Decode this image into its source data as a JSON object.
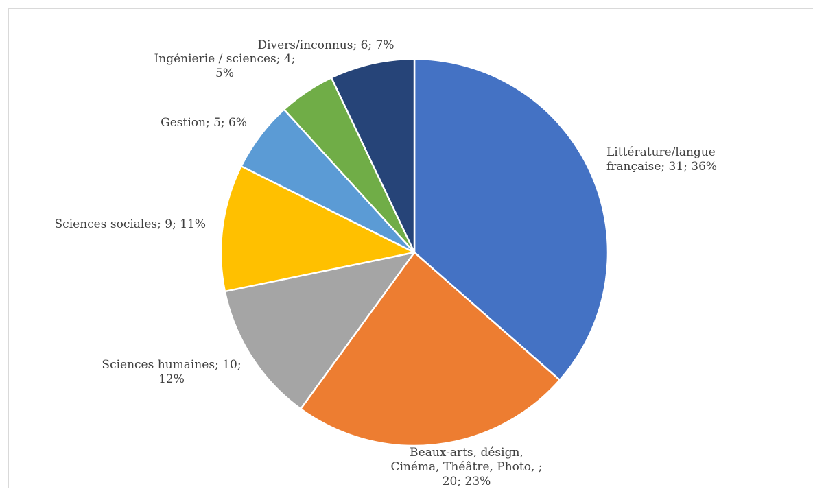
{
  "chart_data": {
    "type": "pie",
    "title": "",
    "start_angle_deg": 0,
    "direction": "clockwise",
    "slices": [
      {
        "label": "Littérature/langue française",
        "value": 31,
        "percent": "36%",
        "color": "#4472C4",
        "label_lines": [
          "Littérature/langue",
          "française; 31; 36%"
        ]
      },
      {
        "label": "Beaux-arts, désign, Cinéma, Théâtre, Photo, ;",
        "value": 20,
        "percent": "23%",
        "color": "#ED7D31",
        "label_lines": [
          "Beaux-arts, désign,",
          "Cinéma, Théâtre, Photo, ;",
          "20; 23%"
        ]
      },
      {
        "label": "Sciences humaines",
        "value": 10,
        "percent": "12%",
        "color": "#A5A5A5",
        "label_lines": [
          "Sciences humaines; 10;",
          "12%"
        ]
      },
      {
        "label": "Sciences sociales",
        "value": 9,
        "percent": "11%",
        "color": "#FFC000",
        "label_lines": [
          "Sciences sociales; 9; 11%"
        ]
      },
      {
        "label": "Gestion",
        "value": 5,
        "percent": "6%",
        "color": "#5B9BD5",
        "label_lines": [
          "Gestion; 5; 6%"
        ]
      },
      {
        "label": "Ingénierie / sciences",
        "value": 4,
        "percent": "5%",
        "color": "#70AD47",
        "label_lines": [
          "Ingénierie / sciences; 4;",
          "5%"
        ]
      },
      {
        "label": "Divers/inconnus",
        "value": 6,
        "percent": "7%",
        "color": "#264478",
        "label_lines": [
          "Divers/inconnus; 6; 7%"
        ]
      }
    ]
  }
}
